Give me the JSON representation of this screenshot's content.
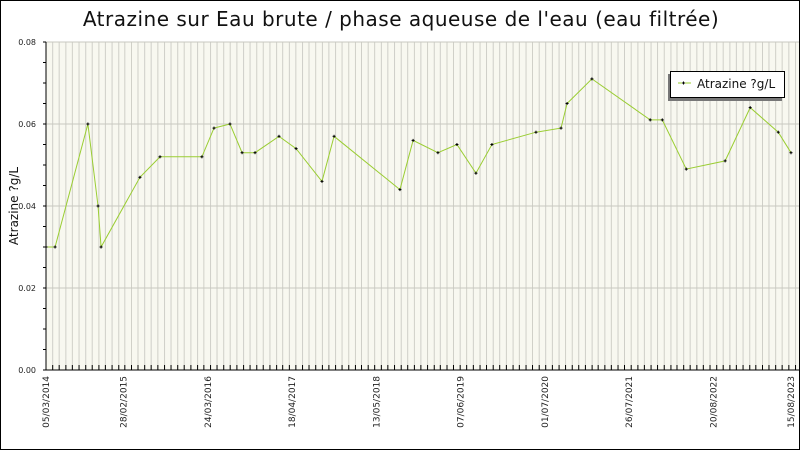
{
  "chart_data": {
    "type": "line",
    "title": "Atrazine sur Eau brute / phase aqueuse de l'eau (eau filtrée)",
    "xlabel": "",
    "ylabel": "Atrazine ?g/L",
    "xlim": [
      "2014-03-05",
      "2023-08-15"
    ],
    "ylim": [
      0,
      0.08
    ],
    "y_ticks": [
      "0.00",
      "0.02",
      "0.04",
      "0.06",
      "0.08"
    ],
    "x_ticks": [
      "05/03/2014",
      "28/02/2015",
      "24/03/2016",
      "18/04/2017",
      "13/05/2018",
      "07/06/2019",
      "01/07/2020",
      "26/07/2021",
      "20/08/2022",
      "15/08/2023"
    ],
    "x_tick_dates": [
      "2014-03-05",
      "2015-02-28",
      "2016-03-24",
      "2017-04-18",
      "2018-05-13",
      "2019-06-07",
      "2020-07-01",
      "2021-07-26",
      "2022-08-20",
      "2023-08-15"
    ],
    "grid": true,
    "legend_position": "top-right",
    "line_color": "#9acd32",
    "plot_background": "#f8f8f0",
    "series": [
      {
        "name": "Atrazine ?g/L",
        "x": [
          "2014-03-05",
          "2014-04-16",
          "2014-09-15",
          "2014-11-01",
          "2014-11-15",
          "2015-05-14",
          "2015-08-15",
          "2016-02-25",
          "2016-04-21",
          "2016-07-04",
          "2016-08-29",
          "2016-10-28",
          "2017-02-16",
          "2017-05-06",
          "2017-09-03",
          "2017-10-29",
          "2018-08-30",
          "2018-10-30",
          "2019-02-22",
          "2019-05-21",
          "2019-08-17",
          "2019-10-30",
          "2020-05-21",
          "2020-09-14",
          "2020-10-12",
          "2021-02-04",
          "2021-11-01",
          "2021-12-27",
          "2022-04-17",
          "2022-10-14",
          "2023-02-07",
          "2023-06-17",
          "2023-08-15"
        ],
        "values": [
          0.03,
          0.03,
          0.06,
          0.04,
          0.03,
          0.047,
          0.052,
          0.052,
          0.059,
          0.06,
          0.053,
          0.053,
          0.057,
          0.054,
          0.046,
          0.057,
          0.044,
          0.056,
          0.053,
          0.055,
          0.048,
          0.055,
          0.058,
          0.059,
          0.065,
          0.071,
          0.061,
          0.061,
          0.049,
          0.051,
          0.064,
          0.058,
          0.053
        ]
      }
    ]
  }
}
